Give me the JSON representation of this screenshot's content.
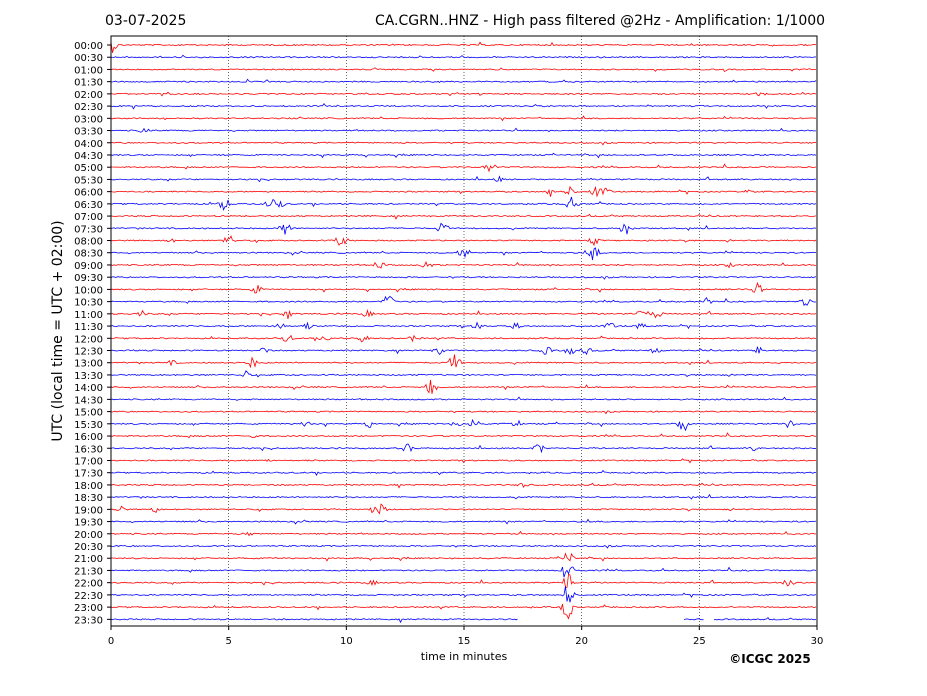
{
  "header": {
    "date": "03-07-2025",
    "station_title": "CA.CGRN..HNZ - High pass filtered @2Hz - Amplification: 1/1000"
  },
  "footer": {
    "copyright": "©ICGC 2025"
  },
  "colors": {
    "odd_trace": "#ff0000",
    "even_trace": "#0000ff",
    "axes": "#000000"
  },
  "chart_data": {
    "type": "line",
    "ylabel": "UTC (local time = UTC + 02:00)",
    "xlabel": "time in minutes",
    "xlim": [
      0,
      30
    ],
    "x_ticks": [
      0,
      5,
      10,
      15,
      20,
      25,
      30
    ],
    "x_gridlines": [
      5,
      10,
      15,
      20,
      25
    ],
    "rows": [
      "00:00",
      "00:30",
      "01:00",
      "01:30",
      "02:00",
      "02:30",
      "03:00",
      "03:30",
      "04:00",
      "04:30",
      "05:00",
      "05:30",
      "06:00",
      "06:30",
      "07:00",
      "07:30",
      "08:00",
      "08:30",
      "09:00",
      "09:30",
      "10:00",
      "10:30",
      "11:00",
      "11:30",
      "12:00",
      "12:30",
      "13:00",
      "13:30",
      "14:00",
      "14:30",
      "15:00",
      "15:30",
      "16:00",
      "16:30",
      "17:00",
      "17:30",
      "18:00",
      "18:30",
      "19:00",
      "19:30",
      "20:00",
      "20:30",
      "21:00",
      "21:30",
      "22:00",
      "22:30",
      "23:00",
      "23:30"
    ],
    "row_colors": [
      "red",
      "blue"
    ],
    "last_row_gaps": [
      [
        17.3,
        24.3
      ],
      [
        25.2,
        25.6
      ]
    ],
    "events": [
      {
        "row": 0,
        "t": 0.02,
        "amp": 9
      },
      {
        "row": 4,
        "t": 27.6,
        "amp": 3
      },
      {
        "row": 7,
        "t": 1.4,
        "amp": 3
      },
      {
        "row": 10,
        "t": 16.1,
        "amp": 7
      },
      {
        "row": 11,
        "t": 16.5,
        "amp": 3
      },
      {
        "row": 12,
        "t": 18.7,
        "amp": 6
      },
      {
        "row": 12,
        "t": 19.5,
        "amp": 5
      },
      {
        "row": 12,
        "t": 20.6,
        "amp": 6
      },
      {
        "row": 12,
        "t": 21.0,
        "amp": 5
      },
      {
        "row": 12,
        "t": 27.0,
        "amp": 3
      },
      {
        "row": 13,
        "t": 4.8,
        "amp": 8
      },
      {
        "row": 13,
        "t": 6.8,
        "amp": 6
      },
      {
        "row": 13,
        "t": 7.2,
        "amp": 4
      },
      {
        "row": 13,
        "t": 19.6,
        "amp": 9
      },
      {
        "row": 15,
        "t": 7.4,
        "amp": 9
      },
      {
        "row": 15,
        "t": 14.1,
        "amp": 7
      },
      {
        "row": 15,
        "t": 21.9,
        "amp": 10
      },
      {
        "row": 16,
        "t": 2.5,
        "amp": 3
      },
      {
        "row": 16,
        "t": 5.0,
        "amp": 7
      },
      {
        "row": 16,
        "t": 9.8,
        "amp": 8
      },
      {
        "row": 16,
        "t": 20.5,
        "amp": 5
      },
      {
        "row": 17,
        "t": 15.0,
        "amp": 8
      },
      {
        "row": 17,
        "t": 20.5,
        "amp": 9
      },
      {
        "row": 18,
        "t": 11.4,
        "amp": 5
      },
      {
        "row": 18,
        "t": 13.4,
        "amp": 5
      },
      {
        "row": 18,
        "t": 26.3,
        "amp": 3
      },
      {
        "row": 20,
        "t": 6.2,
        "amp": 5
      },
      {
        "row": 20,
        "t": 27.4,
        "amp": 11
      },
      {
        "row": 21,
        "t": 11.8,
        "amp": 9
      },
      {
        "row": 21,
        "t": 25.3,
        "amp": 4
      },
      {
        "row": 21,
        "t": 29.5,
        "amp": 5
      },
      {
        "row": 22,
        "t": 1.3,
        "amp": 4
      },
      {
        "row": 22,
        "t": 7.5,
        "amp": 6
      },
      {
        "row": 22,
        "t": 10.9,
        "amp": 4
      },
      {
        "row": 22,
        "t": 22.6,
        "amp": 6
      },
      {
        "row": 22,
        "t": 23.2,
        "amp": 5
      },
      {
        "row": 23,
        "t": 7.2,
        "amp": 5
      },
      {
        "row": 23,
        "t": 8.4,
        "amp": 4
      },
      {
        "row": 23,
        "t": 15.6,
        "amp": 5
      },
      {
        "row": 23,
        "t": 17.2,
        "amp": 4
      },
      {
        "row": 23,
        "t": 21.2,
        "amp": 5
      },
      {
        "row": 23,
        "t": 22.5,
        "amp": 4
      },
      {
        "row": 24,
        "t": 7.5,
        "amp": 5
      },
      {
        "row": 24,
        "t": 9.1,
        "amp": 5
      },
      {
        "row": 24,
        "t": 10.7,
        "amp": 5
      },
      {
        "row": 24,
        "t": 12.9,
        "amp": 4
      },
      {
        "row": 25,
        "t": 6.5,
        "amp": 4
      },
      {
        "row": 25,
        "t": 13.9,
        "amp": 5
      },
      {
        "row": 25,
        "t": 18.5,
        "amp": 5
      },
      {
        "row": 25,
        "t": 19.5,
        "amp": 5
      },
      {
        "row": 25,
        "t": 20.2,
        "amp": 5
      },
      {
        "row": 25,
        "t": 23.1,
        "amp": 4
      },
      {
        "row": 25,
        "t": 27.5,
        "amp": 5
      },
      {
        "row": 26,
        "t": 2.6,
        "amp": 3
      },
      {
        "row": 26,
        "t": 6.0,
        "amp": 6
      },
      {
        "row": 26,
        "t": 14.6,
        "amp": 10
      },
      {
        "row": 27,
        "t": 5.7,
        "amp": 5
      },
      {
        "row": 28,
        "t": 13.6,
        "amp": 10
      },
      {
        "row": 31,
        "t": 8.2,
        "amp": 5
      },
      {
        "row": 31,
        "t": 11.0,
        "amp": 5
      },
      {
        "row": 31,
        "t": 14.7,
        "amp": 5
      },
      {
        "row": 31,
        "t": 15.4,
        "amp": 6
      },
      {
        "row": 31,
        "t": 17.2,
        "amp": 5
      },
      {
        "row": 31,
        "t": 24.3,
        "amp": 10
      },
      {
        "row": 31,
        "t": 28.8,
        "amp": 5
      },
      {
        "row": 32,
        "t": 6.0,
        "amp": 3
      },
      {
        "row": 33,
        "t": 12.6,
        "amp": 5
      },
      {
        "row": 33,
        "t": 18.2,
        "amp": 6
      },
      {
        "row": 33,
        "t": 27.3,
        "amp": 3
      },
      {
        "row": 34,
        "t": 6.5,
        "amp": 3
      },
      {
        "row": 36,
        "t": 17.5,
        "amp": 3
      },
      {
        "row": 38,
        "t": 0.4,
        "amp": 5
      },
      {
        "row": 38,
        "t": 1.9,
        "amp": 4
      },
      {
        "row": 38,
        "t": 11.2,
        "amp": 7
      },
      {
        "row": 38,
        "t": 11.5,
        "amp": 6
      },
      {
        "row": 40,
        "t": 5.8,
        "amp": 3
      },
      {
        "row": 44,
        "t": 11.1,
        "amp": 3
      },
      {
        "row": 44,
        "t": 28.8,
        "amp": 5
      },
      {
        "row": 42,
        "t": 19.4,
        "amp": 10
      },
      {
        "row": 43,
        "t": 19.4,
        "amp": 12
      },
      {
        "row": 44,
        "t": 19.4,
        "amp": 14
      },
      {
        "row": 45,
        "t": 19.4,
        "amp": 14
      },
      {
        "row": 46,
        "t": 19.4,
        "amp": 14
      },
      {
        "row": 47,
        "t": 19.4,
        "amp": 11
      }
    ]
  }
}
